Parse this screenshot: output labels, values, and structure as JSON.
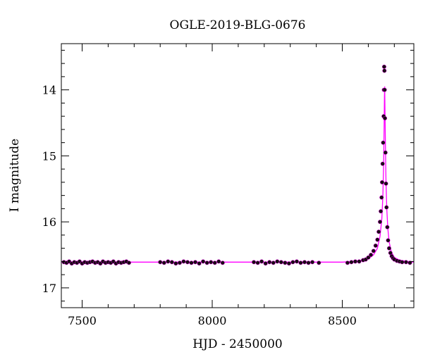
{
  "chart_data": {
    "type": "scatter",
    "title": "OGLE-2019-BLG-0676",
    "xlabel": "HJD - 2450000",
    "ylabel": "I magnitude",
    "xlim": [
      7420,
      8775
    ],
    "ylim": [
      17.3,
      13.3
    ],
    "y_inverted": true,
    "grid": false,
    "x_ticks": [
      7500,
      8000,
      8500
    ],
    "x_tick_labels": [
      "7500",
      "8000",
      "8500"
    ],
    "y_ticks": [
      14,
      15,
      16,
      17
    ],
    "y_tick_labels": [
      "14",
      "15",
      "16",
      "17"
    ],
    "x_minor_step": 100,
    "y_minor_step": 0.2,
    "colors": {
      "points": "#1a0a16",
      "model": "#ff00ff",
      "axes": "#000000"
    },
    "series": [
      {
        "kind": "points",
        "x": [
          7430,
          7440,
          7450,
          7460,
          7470,
          7480,
          7490,
          7500,
          7510,
          7520,
          7530,
          7540,
          7550,
          7560,
          7570,
          7580,
          7590,
          7600,
          7610,
          7620,
          7630,
          7640,
          7650,
          7660,
          7670,
          7680,
          7800,
          7815,
          7830,
          7845,
          7860,
          7875,
          7890,
          7905,
          7920,
          7935,
          7950,
          7965,
          7980,
          7995,
          8010,
          8025,
          8040,
          8160,
          8175,
          8190,
          8205,
          8220,
          8235,
          8250,
          8265,
          8280,
          8295,
          8310,
          8325,
          8340,
          8355,
          8370,
          8385,
          8410,
          8520,
          8535,
          8550,
          8565,
          8580,
          8590,
          8600,
          8610,
          8620,
          8628,
          8635,
          8640,
          8645,
          8648,
          8651,
          8653,
          8655,
          8657,
          8659,
          8660,
          8661,
          8662,
          8663,
          8664,
          8666,
          8668,
          8670,
          8673,
          8676,
          8680,
          8685,
          8690,
          8695,
          8700,
          8710,
          8720,
          8730,
          8745,
          8760
        ],
        "y": [
          16.61,
          16.62,
          16.6,
          16.63,
          16.61,
          16.62,
          16.6,
          16.63,
          16.61,
          16.62,
          16.61,
          16.6,
          16.62,
          16.61,
          16.63,
          16.6,
          16.62,
          16.61,
          16.62,
          16.6,
          16.63,
          16.61,
          16.62,
          16.61,
          16.6,
          16.62,
          16.61,
          16.62,
          16.6,
          16.61,
          16.63,
          16.62,
          16.6,
          16.61,
          16.62,
          16.61,
          16.63,
          16.6,
          16.62,
          16.61,
          16.62,
          16.6,
          16.62,
          16.61,
          16.62,
          16.6,
          16.63,
          16.61,
          16.62,
          16.6,
          16.61,
          16.62,
          16.63,
          16.61,
          16.6,
          16.62,
          16.61,
          16.62,
          16.61,
          16.62,
          16.62,
          16.61,
          16.6,
          16.6,
          16.58,
          16.57,
          16.54,
          16.5,
          16.44,
          16.36,
          16.27,
          16.15,
          16.0,
          15.84,
          15.63,
          15.4,
          15.12,
          14.8,
          14.4,
          14.0,
          13.65,
          13.71,
          14.0,
          14.43,
          14.95,
          15.42,
          15.78,
          16.08,
          16.28,
          16.4,
          16.47,
          16.52,
          16.55,
          16.57,
          16.59,
          16.6,
          16.61,
          16.61,
          16.62
        ]
      },
      {
        "kind": "model",
        "x": [
          7420,
          8500,
          8540,
          8570,
          8600,
          8620,
          8635,
          8645,
          8652,
          8656,
          8659,
          8661,
          8662,
          8663,
          8664,
          8666,
          8668,
          8671,
          8675,
          8680,
          8688,
          8700,
          8720,
          8750,
          8775
        ],
        "y": [
          16.61,
          16.61,
          16.6,
          16.59,
          16.56,
          16.5,
          16.4,
          16.22,
          15.95,
          15.6,
          15.1,
          14.5,
          14.1,
          13.95,
          14.3,
          14.9,
          15.4,
          15.8,
          16.1,
          16.3,
          16.45,
          16.54,
          16.58,
          16.6,
          16.61
        ]
      }
    ]
  }
}
